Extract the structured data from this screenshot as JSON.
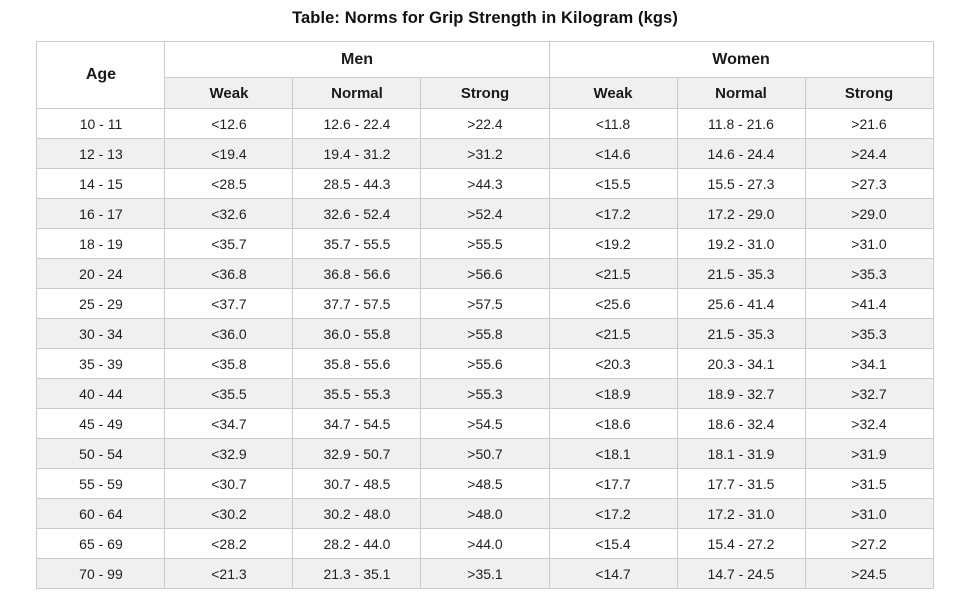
{
  "page_title": "Table: Norms for Grip Strength in Kilogram (kgs)",
  "table": {
    "corner_header": "Age",
    "groups": [
      {
        "label": "Men",
        "sub": [
          "Weak",
          "Normal",
          "Strong"
        ]
      },
      {
        "label": "Women",
        "sub": [
          "Weak",
          "Normal",
          "Strong"
        ]
      }
    ]
  },
  "chart_data": {
    "type": "table",
    "title": "Table: Norms for Grip Strength in Kilogram (kgs)",
    "columns": [
      "Age",
      "Men Weak",
      "Men Normal",
      "Men Strong",
      "Women Weak",
      "Women Normal",
      "Women Strong"
    ],
    "rows": [
      [
        "10 - 11",
        "<12.6",
        "12.6 - 22.4",
        ">22.4",
        "<11.8",
        "11.8 - 21.6",
        ">21.6"
      ],
      [
        "12 - 13",
        "<19.4",
        "19.4 - 31.2",
        ">31.2",
        "<14.6",
        "14.6 - 24.4",
        ">24.4"
      ],
      [
        "14 - 15",
        "<28.5",
        "28.5 - 44.3",
        ">44.3",
        "<15.5",
        "15.5 - 27.3",
        ">27.3"
      ],
      [
        "16 - 17",
        "<32.6",
        "32.6 - 52.4",
        ">52.4",
        "<17.2",
        "17.2 - 29.0",
        ">29.0"
      ],
      [
        "18 - 19",
        "<35.7",
        "35.7 - 55.5",
        ">55.5",
        "<19.2",
        "19.2 - 31.0",
        ">31.0"
      ],
      [
        "20 - 24",
        "<36.8",
        "36.8 - 56.6",
        ">56.6",
        "<21.5",
        "21.5 - 35.3",
        ">35.3"
      ],
      [
        "25 - 29",
        "<37.7",
        "37.7 - 57.5",
        ">57.5",
        "<25.6",
        "25.6 - 41.4",
        ">41.4"
      ],
      [
        "30 - 34",
        "<36.0",
        "36.0 - 55.8",
        ">55.8",
        "<21.5",
        "21.5 - 35.3",
        ">35.3"
      ],
      [
        "35 - 39",
        "<35.8",
        "35.8 - 55.6",
        ">55.6",
        "<20.3",
        "20.3 - 34.1",
        ">34.1"
      ],
      [
        "40 - 44",
        "<35.5",
        "35.5 - 55.3",
        ">55.3",
        "<18.9",
        "18.9 - 32.7",
        ">32.7"
      ],
      [
        "45 - 49",
        "<34.7",
        "34.7 - 54.5",
        ">54.5",
        "<18.6",
        "18.6 - 32.4",
        ">32.4"
      ],
      [
        "50 - 54",
        "<32.9",
        "32.9 - 50.7",
        ">50.7",
        "<18.1",
        "18.1 - 31.9",
        ">31.9"
      ],
      [
        "55 - 59",
        "<30.7",
        "30.7 - 48.5",
        ">48.5",
        "<17.7",
        "17.7 - 31.5",
        ">31.5"
      ],
      [
        "60 - 64",
        "<30.2",
        "30.2 - 48.0",
        ">48.0",
        "<17.2",
        "17.2 - 31.0",
        ">31.0"
      ],
      [
        "65 - 69",
        "<28.2",
        "28.2 - 44.0",
        ">44.0",
        "<15.4",
        "15.4 - 27.2",
        ">27.2"
      ],
      [
        "70 - 99",
        "<21.3",
        "21.3 - 35.1",
        ">35.1",
        "<14.7",
        "14.7 - 24.5",
        ">24.5"
      ]
    ]
  },
  "colors": {
    "border": "#cbcbcb",
    "header_background": "#f0f0f0",
    "row_alt_background": "#f0f0f0",
    "text": "#1a1a1a"
  }
}
